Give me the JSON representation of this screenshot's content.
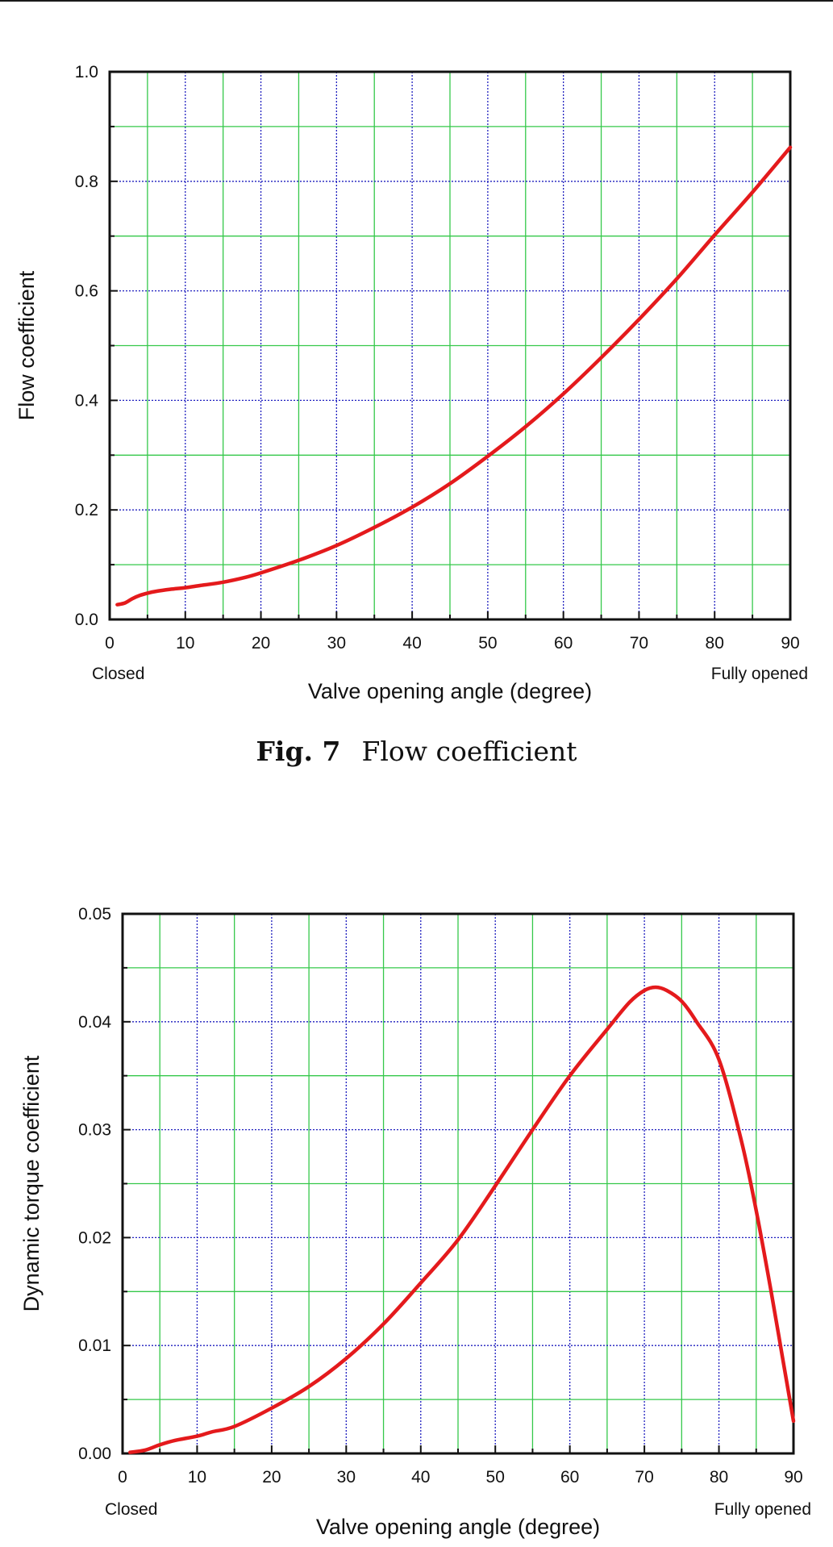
{
  "figure_caption": {
    "number": "Fig. 7",
    "text": "Flow coefficient"
  },
  "chart_data": [
    {
      "type": "line",
      "xlabel": "Valve opening angle (degree)",
      "ylabel": "Flow coefficient",
      "xlim": [
        0,
        90
      ],
      "ylim": [
        0,
        1.0
      ],
      "x_ticks": [
        "0",
        "10",
        "20",
        "30",
        "40",
        "50",
        "60",
        "70",
        "80",
        "90"
      ],
      "y_ticks": [
        "0.0",
        "0.2",
        "0.4",
        "0.6",
        "0.8",
        "1.0"
      ],
      "x_end_labels": {
        "left": "Closed",
        "right": "Fully opened"
      },
      "grid": true,
      "line_color": "#e41a1c",
      "major_grid_color": "#1f1fbf",
      "minor_grid_color": "#35c84a",
      "series": [
        {
          "x": [
            1,
            2,
            3,
            4,
            5,
            6,
            8,
            10,
            12,
            15,
            18,
            20,
            25,
            30,
            35,
            40,
            45,
            50,
            55,
            60,
            65,
            70,
            75,
            80,
            85,
            90
          ],
          "y": [
            0.027,
            0.03,
            0.038,
            0.044,
            0.048,
            0.051,
            0.055,
            0.058,
            0.062,
            0.068,
            0.077,
            0.085,
            0.108,
            0.135,
            0.168,
            0.205,
            0.248,
            0.298,
            0.352,
            0.412,
            0.478,
            0.548,
            0.622,
            0.702,
            0.78,
            0.862
          ]
        }
      ]
    },
    {
      "type": "line",
      "xlabel": "Valve opening angle (degree)",
      "ylabel": "Dynamic torque coefficient",
      "xlim": [
        0,
        90
      ],
      "ylim": [
        0,
        0.05
      ],
      "x_ticks": [
        "0",
        "10",
        "20",
        "30",
        "40",
        "50",
        "60",
        "70",
        "80",
        "90"
      ],
      "y_ticks": [
        "0.00",
        "0.01",
        "0.02",
        "0.03",
        "0.04",
        "0.05"
      ],
      "x_end_labels": {
        "left": "Closed",
        "right": "Fully opened"
      },
      "grid": true,
      "line_color": "#e41a1c",
      "major_grid_color": "#1f1fbf",
      "minor_grid_color": "#35c84a",
      "series": [
        {
          "x": [
            1,
            3,
            5,
            7,
            10,
            12,
            15,
            20,
            25,
            30,
            35,
            40,
            45,
            50,
            55,
            60,
            65,
            68,
            70,
            71.5,
            73,
            75,
            77,
            80,
            83,
            85,
            87,
            88.5,
            90
          ],
          "y": [
            0.0001,
            0.0003,
            0.0008,
            0.0012,
            0.0016,
            0.002,
            0.0025,
            0.0042,
            0.0062,
            0.0088,
            0.012,
            0.0158,
            0.0198,
            0.0248,
            0.03,
            0.035,
            0.0393,
            0.0418,
            0.0429,
            0.0432,
            0.0429,
            0.0419,
            0.04,
            0.0365,
            0.029,
            0.0225,
            0.015,
            0.009,
            0.003
          ]
        }
      ]
    }
  ]
}
